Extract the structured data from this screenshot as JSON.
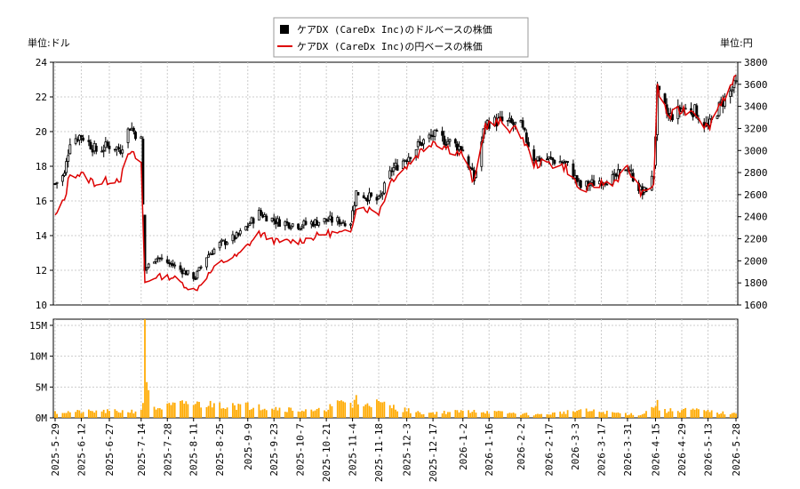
{
  "chart_data": [
    {
      "type": "candlestick+line",
      "left_unit_label": "単位:ドル",
      "right_unit_label": "単位:円",
      "legend": [
        {
          "label": "ケアDX (CareDx Inc)のドルベースの株価",
          "color": "#000000",
          "marker": "square"
        },
        {
          "label": "ケアDX (CareDx Inc)の円ベースの株価",
          "color": "#dd0000",
          "marker": "line"
        }
      ],
      "y_left": {
        "min": 10,
        "max": 24,
        "ticks": [
          10,
          12,
          14,
          16,
          18,
          20,
          22,
          24
        ]
      },
      "y_right": {
        "min": 1600,
        "max": 3800,
        "ticks": [
          1600,
          1800,
          2000,
          2200,
          2400,
          2600,
          2800,
          3000,
          3200,
          3400,
          3600,
          3800
        ]
      },
      "grid": true,
      "usd_close_key_points": [
        {
          "date": "2025-05-29",
          "close": 17.0
        },
        {
          "date": "2025-06-03",
          "close": 17.5
        },
        {
          "date": "2025-06-06",
          "close": 19.5
        },
        {
          "date": "2025-06-12",
          "close": 19.8
        },
        {
          "date": "2025-06-20",
          "close": 18.9
        },
        {
          "date": "2025-06-27",
          "close": 19.2
        },
        {
          "date": "2025-07-03",
          "close": 19.0
        },
        {
          "date": "2025-07-08",
          "close": 20.3
        },
        {
          "date": "2025-07-14",
          "close": 19.5
        },
        {
          "date": "2025-07-16",
          "close": 12.0
        },
        {
          "date": "2025-07-22",
          "close": 12.8
        },
        {
          "date": "2025-07-31",
          "close": 12.3
        },
        {
          "date": "2025-08-08",
          "close": 11.8
        },
        {
          "date": "2025-08-12",
          "close": 11.6
        },
        {
          "date": "2025-08-18",
          "close": 12.8
        },
        {
          "date": "2025-08-25",
          "close": 13.5
        },
        {
          "date": "2025-09-04",
          "close": 14.0
        },
        {
          "date": "2025-09-15",
          "close": 15.3
        },
        {
          "date": "2025-09-25",
          "close": 14.8
        },
        {
          "date": "2025-10-07",
          "close": 14.6
        },
        {
          "date": "2025-10-21",
          "close": 14.9
        },
        {
          "date": "2025-11-03",
          "close": 14.8
        },
        {
          "date": "2025-11-06",
          "close": 16.5
        },
        {
          "date": "2025-11-18",
          "close": 16.0
        },
        {
          "date": "2025-11-25",
          "close": 17.8
        },
        {
          "date": "2025-12-03",
          "close": 18.5
        },
        {
          "date": "2025-12-10",
          "close": 19.3
        },
        {
          "date": "2025-12-17",
          "close": 19.8
        },
        {
          "date": "2025-12-24",
          "close": 19.5
        },
        {
          "date": "2026-01-02",
          "close": 19.0
        },
        {
          "date": "2026-01-08",
          "close": 17.2
        },
        {
          "date": "2026-01-14",
          "close": 20.5
        },
        {
          "date": "2026-01-22",
          "close": 20.6
        },
        {
          "date": "2026-02-02",
          "close": 20.3
        },
        {
          "date": "2026-02-09",
          "close": 18.5
        },
        {
          "date": "2026-02-17",
          "close": 18.4
        },
        {
          "date": "2026-02-26",
          "close": 18.2
        },
        {
          "date": "2026-03-06",
          "close": 16.8
        },
        {
          "date": "2026-03-17",
          "close": 17.2
        },
        {
          "date": "2026-03-24",
          "close": 17.3
        },
        {
          "date": "2026-03-31",
          "close": 18.0
        },
        {
          "date": "2026-04-08",
          "close": 16.4
        },
        {
          "date": "2026-04-14",
          "close": 17.4
        },
        {
          "date": "2026-04-16",
          "close": 22.3
        },
        {
          "date": "2026-04-22",
          "close": 20.8
        },
        {
          "date": "2026-04-29",
          "close": 21.3
        },
        {
          "date": "2026-05-06",
          "close": 21.2
        },
        {
          "date": "2026-05-13",
          "close": 20.2
        },
        {
          "date": "2026-05-20",
          "close": 21.6
        },
        {
          "date": "2026-05-28",
          "close": 22.7
        }
      ],
      "jpy_close_key_points": [
        {
          "date": "2025-05-29",
          "close": 2400
        },
        {
          "date": "2025-06-03",
          "close": 2550
        },
        {
          "date": "2025-06-06",
          "close": 2800
        },
        {
          "date": "2025-06-12",
          "close": 2780
        },
        {
          "date": "2025-06-20",
          "close": 2700
        },
        {
          "date": "2025-06-27",
          "close": 2730
        },
        {
          "date": "2025-07-03",
          "close": 2750
        },
        {
          "date": "2025-07-08",
          "close": 2980
        },
        {
          "date": "2025-07-14",
          "close": 2890
        },
        {
          "date": "2025-07-16",
          "close": 1800
        },
        {
          "date": "2025-07-22",
          "close": 1860
        },
        {
          "date": "2025-07-31",
          "close": 1850
        },
        {
          "date": "2025-08-08",
          "close": 1760
        },
        {
          "date": "2025-08-12",
          "close": 1730
        },
        {
          "date": "2025-08-18",
          "close": 1860
        },
        {
          "date": "2025-08-25",
          "close": 1980
        },
        {
          "date": "2025-09-04",
          "close": 2050
        },
        {
          "date": "2025-09-15",
          "close": 2250
        },
        {
          "date": "2025-09-25",
          "close": 2170
        },
        {
          "date": "2025-10-07",
          "close": 2180
        },
        {
          "date": "2025-10-21",
          "close": 2250
        },
        {
          "date": "2025-11-03",
          "close": 2250
        },
        {
          "date": "2025-11-06",
          "close": 2500
        },
        {
          "date": "2025-11-18",
          "close": 2440
        },
        {
          "date": "2025-11-25",
          "close": 2740
        },
        {
          "date": "2025-12-03",
          "close": 2860
        },
        {
          "date": "2025-12-10",
          "close": 2990
        },
        {
          "date": "2025-12-17",
          "close": 3090
        },
        {
          "date": "2025-12-24",
          "close": 3030
        },
        {
          "date": "2026-01-02",
          "close": 2960
        },
        {
          "date": "2026-01-08",
          "close": 2700
        },
        {
          "date": "2026-01-14",
          "close": 3230
        },
        {
          "date": "2026-01-22",
          "close": 3250
        },
        {
          "date": "2026-02-02",
          "close": 3150
        },
        {
          "date": "2026-02-09",
          "close": 2880
        },
        {
          "date": "2026-02-17",
          "close": 2880
        },
        {
          "date": "2026-02-26",
          "close": 2850
        },
        {
          "date": "2026-03-06",
          "close": 2630
        },
        {
          "date": "2026-03-17",
          "close": 2700
        },
        {
          "date": "2026-03-24",
          "close": 2720
        },
        {
          "date": "2026-03-31",
          "close": 2840
        },
        {
          "date": "2026-04-08",
          "close": 2600
        },
        {
          "date": "2026-04-14",
          "close": 2700
        },
        {
          "date": "2026-04-16",
          "close": 3560
        },
        {
          "date": "2026-04-22",
          "close": 3300
        },
        {
          "date": "2026-04-29",
          "close": 3370
        },
        {
          "date": "2026-05-06",
          "close": 3360
        },
        {
          "date": "2026-05-13",
          "close": 3200
        },
        {
          "date": "2026-05-20",
          "close": 3450
        },
        {
          "date": "2026-05-28",
          "close": 3640
        }
      ]
    },
    {
      "type": "bar",
      "series_color": "#ffaa00",
      "y": {
        "min": 0,
        "max": 16000000,
        "ticks": [
          0,
          5000000,
          10000000,
          15000000
        ],
        "tick_labels": [
          "0M",
          "5M",
          "10M",
          "15M"
        ]
      },
      "x_tick_labels": [
        "2025-5-29",
        "2025-6-12",
        "2025-6-27",
        "2025-7-14",
        "2025-7-28",
        "2025-8-11",
        "2025-8-25",
        "2025-9-9",
        "2025-9-23",
        "2025-10-7",
        "2025-10-21",
        "2025-11-4",
        "2025-11-18",
        "2025-12-3",
        "2025-12-17",
        "2026-1-2",
        "2026-1-16",
        "2026-2-2",
        "2026-2-17",
        "2026-3-3",
        "2026-3-17",
        "2026-3-31",
        "2026-4-15",
        "2026-4-29",
        "2026-5-13",
        "2026-5-28"
      ],
      "volume_key_points": [
        {
          "date": "2025-05-29",
          "volume": 1100000
        },
        {
          "date": "2025-06-20",
          "volume": 1200000
        },
        {
          "date": "2025-07-14",
          "volume": 1300000
        },
        {
          "date": "2025-07-16",
          "volume": 16000000
        },
        {
          "date": "2025-07-17",
          "volume": 5800000
        },
        {
          "date": "2025-07-18",
          "volume": 4500000
        },
        {
          "date": "2025-07-21",
          "volume": 1800000
        },
        {
          "date": "2025-08-07",
          "volume": 2700000
        },
        {
          "date": "2025-08-25",
          "volume": 2500000
        },
        {
          "date": "2025-09-01",
          "volume": 2400000
        },
        {
          "date": "2025-09-15",
          "volume": 2200000
        },
        {
          "date": "2025-10-15",
          "volume": 1200000
        },
        {
          "date": "2025-11-06",
          "volume": 3700000
        },
        {
          "date": "2025-12-10",
          "volume": 900000
        },
        {
          "date": "2026-01-08",
          "volume": 1300000
        },
        {
          "date": "2026-02-12",
          "volume": 600000
        },
        {
          "date": "2026-03-06",
          "volume": 1400000
        },
        {
          "date": "2026-04-08",
          "volume": 600000
        },
        {
          "date": "2026-04-16",
          "volume": 2900000
        },
        {
          "date": "2026-04-17",
          "volume": 1200000
        },
        {
          "date": "2026-05-01",
          "volume": 1600000
        },
        {
          "date": "2026-05-28",
          "volume": 700000
        }
      ]
    }
  ]
}
